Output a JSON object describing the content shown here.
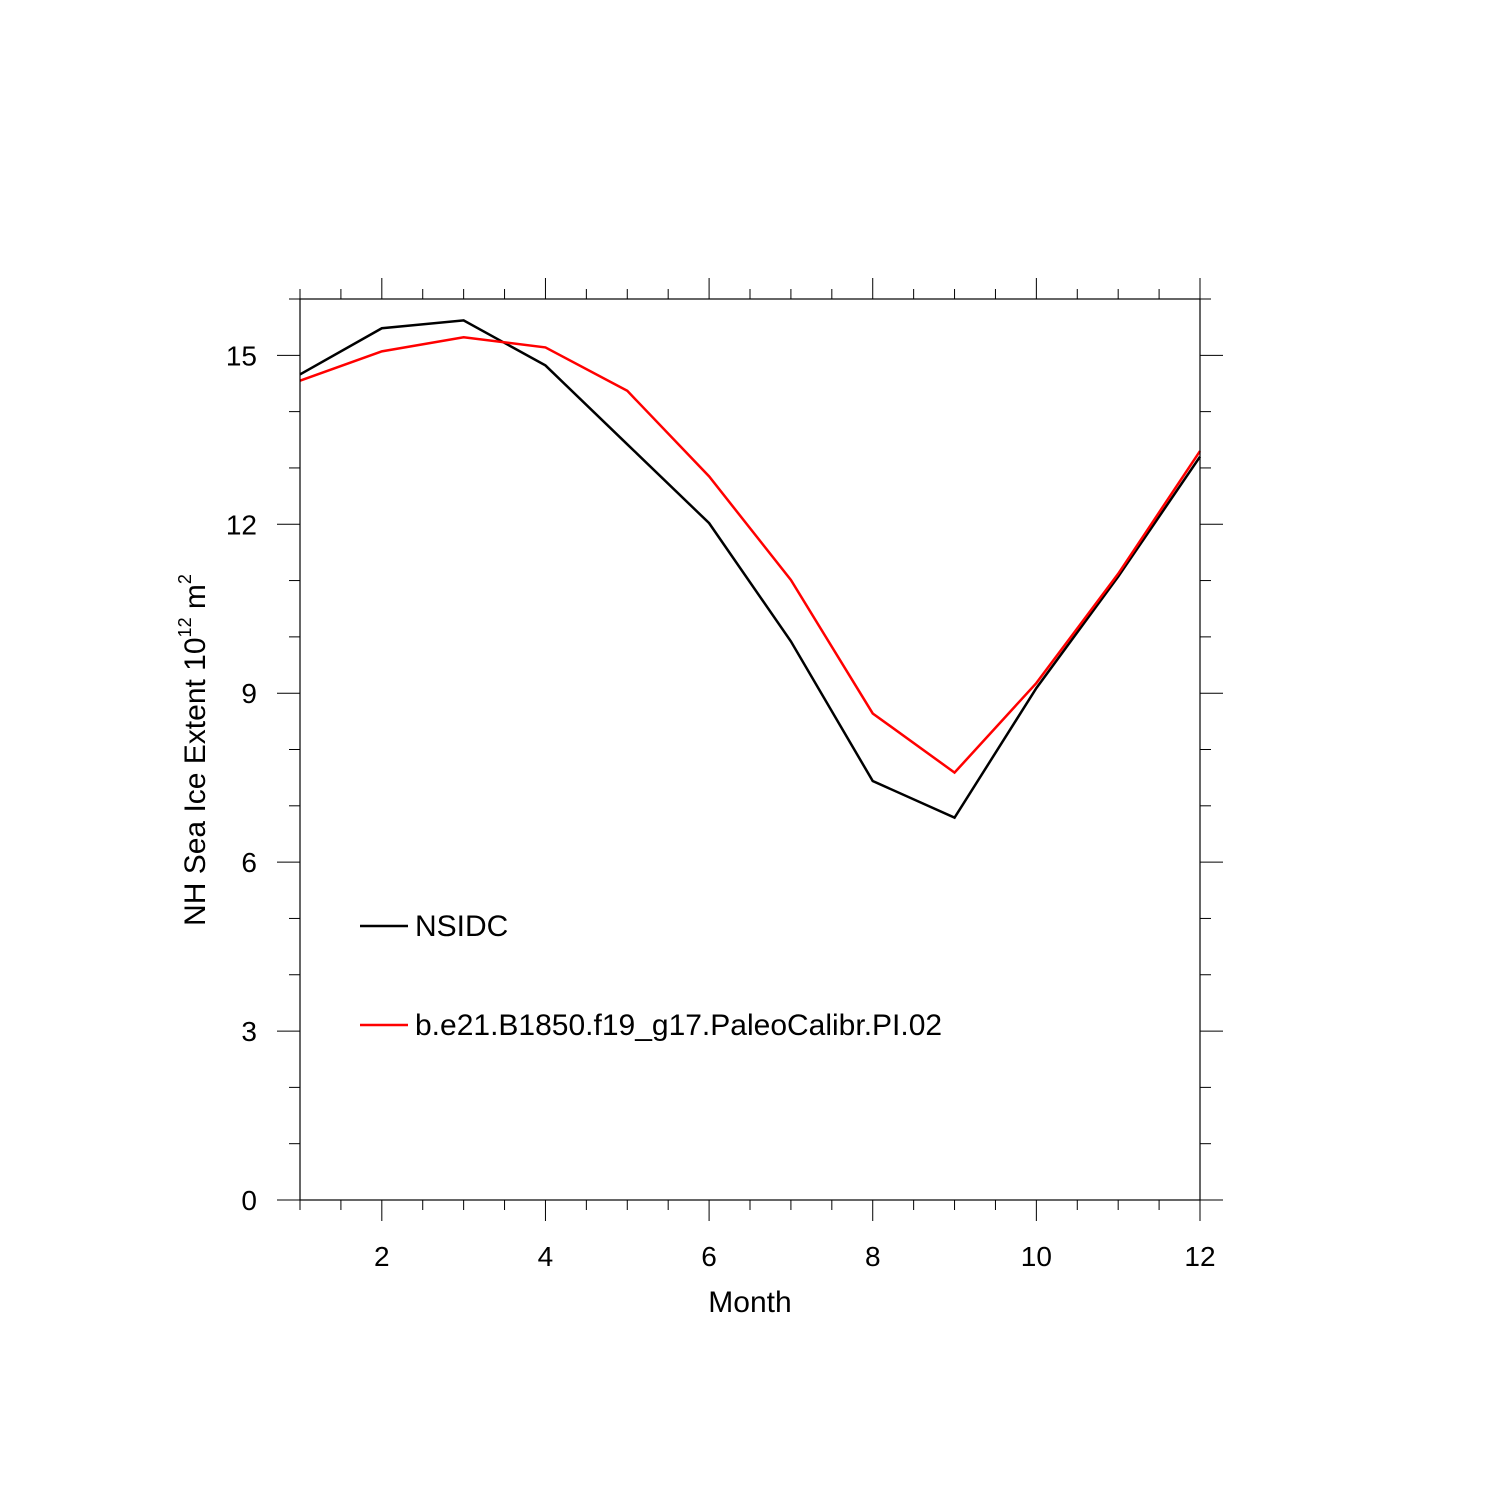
{
  "chart_data": {
    "type": "line",
    "title": "",
    "xlabel": "Month",
    "ylabel": {
      "prefix": "NH Sea Ice Extent 10",
      "sup1": "12",
      "mid": " m",
      "sup2": "2"
    },
    "xlim": [
      1,
      12
    ],
    "ylim": [
      0,
      16
    ],
    "xticks": [
      2,
      4,
      6,
      8,
      10,
      12
    ],
    "yticks": [
      0,
      3,
      6,
      9,
      12,
      15
    ],
    "grid": false,
    "legend_position": "lower-left",
    "x": [
      1,
      2,
      3,
      4,
      5,
      6,
      7,
      8,
      9,
      10,
      11,
      12
    ],
    "series": [
      {
        "name": "NSIDC",
        "color": "#000000",
        "values": [
          14.66,
          15.48,
          15.62,
          14.82,
          13.42,
          12.02,
          9.92,
          7.44,
          6.79,
          9.09,
          11.07,
          13.2
        ]
      },
      {
        "name": "b.e21.B1850.f19_g17.PaleoCalibr.PI.02",
        "color": "#ff0000",
        "values": [
          14.55,
          15.07,
          15.32,
          15.14,
          14.37,
          12.85,
          11.01,
          8.64,
          7.59,
          9.18,
          11.12,
          13.3
        ]
      }
    ]
  }
}
